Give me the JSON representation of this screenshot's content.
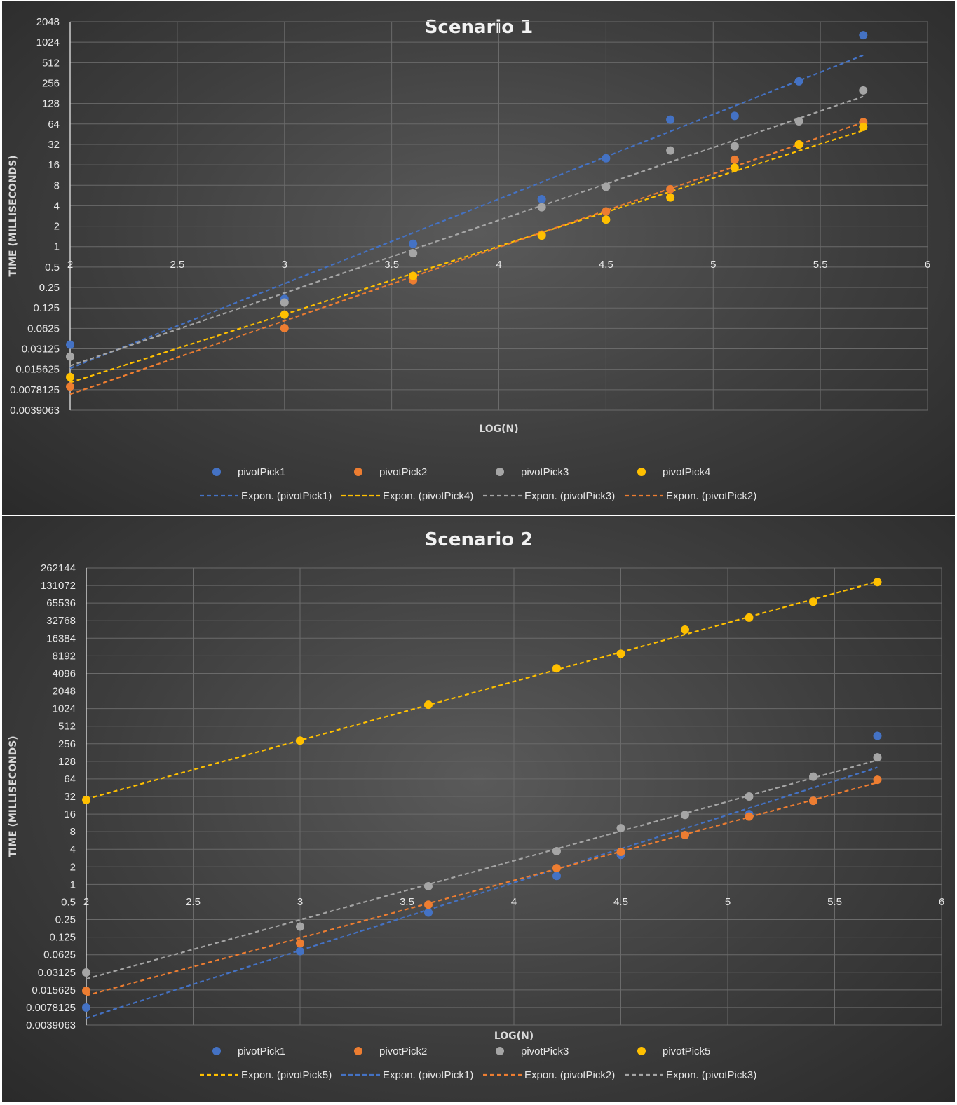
{
  "colors": {
    "pivotPick1": "#4472c4",
    "pivotPick2": "#ed7d31",
    "pivotPick3": "#a5a5a5",
    "pivotPick4": "#ffc000",
    "pivotPick5": "#ffc000"
  },
  "chart_data": [
    {
      "type": "scatter",
      "title": "Scenario 1",
      "xlabel": "LOG(N)",
      "ylabel": "TIME (MILLISECONDS)",
      "xlim": [
        2,
        6
      ],
      "y_scale": "log2",
      "ylim": [
        0.0039063,
        2048
      ],
      "x_ticks": [
        "2",
        "2.5",
        "3",
        "3.5",
        "4",
        "4.5",
        "5",
        "5.5",
        "6"
      ],
      "y_ticks": [
        "2048",
        "1024",
        "512",
        "256",
        "128",
        "64",
        "32",
        "16",
        "8",
        "4",
        "2",
        "1",
        "0.5",
        "0.25",
        "0.125",
        "0.0625",
        "0.03125",
        "0.015625",
        "0.0078125",
        "0.0039063"
      ],
      "grid": true,
      "legend_position": "bottom",
      "x": [
        2,
        3,
        3.6,
        4.2,
        4.5,
        4.8,
        5.1,
        5.4,
        5.7
      ],
      "series": [
        {
          "name": "pivotPick1",
          "values": [
            0.036,
            0.17,
            1.1,
            5,
            20,
            74,
            84,
            272,
            1300
          ]
        },
        {
          "name": "pivotPick2",
          "values": [
            0.0087,
            0.063,
            0.32,
            1.5,
            3.3,
            7,
            19,
            32,
            68
          ]
        },
        {
          "name": "pivotPick3",
          "values": [
            0.024,
            0.15,
            0.8,
            3.8,
            7.6,
            26,
            30,
            70,
            200
          ]
        },
        {
          "name": "pivotPick4",
          "values": [
            0.012,
            0.1,
            0.37,
            1.45,
            2.5,
            5.3,
            14.5,
            32,
            58
          ]
        }
      ],
      "trendlines": [
        {
          "name": "Expon. (pivotPick1)",
          "series": "pivotPick1",
          "type": "exponential"
        },
        {
          "name": "Expon. (pivotPick4)",
          "series": "pivotPick4",
          "type": "exponential"
        },
        {
          "name": "Expon. (pivotPick3)",
          "series": "pivotPick3",
          "type": "exponential"
        },
        {
          "name": "Expon. (pivotPick2)",
          "series": "pivotPick2",
          "type": "exponential"
        }
      ]
    },
    {
      "type": "scatter",
      "title": "Scenario 2",
      "xlabel": "LOG(N)",
      "ylabel": "TIME (MILLISECONDS)",
      "xlim": [
        2,
        6
      ],
      "y_scale": "log2",
      "ylim": [
        0.0039063,
        262144
      ],
      "x_ticks": [
        "2",
        "2.5",
        "3",
        "3.5",
        "4",
        "4.5",
        "5",
        "5.5",
        "6"
      ],
      "y_ticks": [
        "262144",
        "131072",
        "65536",
        "32768",
        "16384",
        "8192",
        "4096",
        "2048",
        "1024",
        "512",
        "256",
        "128",
        "64",
        "32",
        "16",
        "8",
        "4",
        "2",
        "1",
        "0.5",
        "0.25",
        "0.125",
        "0.0625",
        "0.03125",
        "0.015625",
        "0.0078125",
        "0.0039063"
      ],
      "grid": true,
      "legend_position": "bottom",
      "x": [
        2,
        3,
        3.6,
        4.2,
        4.5,
        4.8,
        5.1,
        5.4,
        5.7
      ],
      "series": [
        {
          "name": "pivotPick1",
          "values": [
            0.0078,
            0.072,
            0.33,
            1.4,
            3.2,
            7,
            16,
            27,
            350
          ]
        },
        {
          "name": "pivotPick2",
          "values": [
            0.0151,
            0.098,
            0.45,
            1.9,
            3.6,
            7,
            14.5,
            27,
            62
          ]
        },
        {
          "name": "pivotPick3",
          "values": [
            0.031,
            0.19,
            0.93,
            3.7,
            9.2,
            15.5,
            32,
            70,
            150
          ]
        },
        {
          "name": "pivotPick5",
          "values": [
            28,
            290,
            1190,
            5000,
            8900,
            23000,
            37000,
            69000,
            150000
          ]
        }
      ],
      "trendlines": [
        {
          "name": "Expon. (pivotPick5)",
          "series": "pivotPick5",
          "type": "exponential"
        },
        {
          "name": "Expon. (pivotPick1)",
          "series": "pivotPick1",
          "type": "exponential"
        },
        {
          "name": "Expon. (pivotPick2)",
          "series": "pivotPick2",
          "type": "exponential"
        },
        {
          "name": "Expon. (pivotPick3)",
          "series": "pivotPick3",
          "type": "exponential"
        }
      ]
    }
  ]
}
